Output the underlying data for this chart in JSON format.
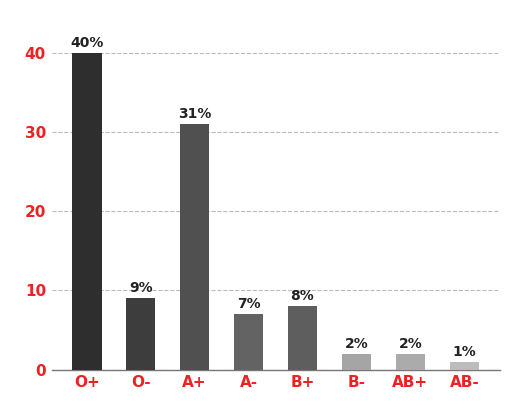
{
  "categories": [
    "O+",
    "O-",
    "A+",
    "A-",
    "B+",
    "B-",
    "AB+",
    "AB-"
  ],
  "values": [
    40,
    9,
    31,
    7,
    8,
    2,
    2,
    1
  ],
  "labels": [
    "40%",
    "9%",
    "31%",
    "7%",
    "8%",
    "2%",
    "2%",
    "1%"
  ],
  "bar_colors": [
    "#2e2e2e",
    "#3d3d3d",
    "#505050",
    "#636363",
    "#5e5e5e",
    "#a5a5a5",
    "#ababab",
    "#bcbcbc"
  ],
  "xlabel_color": "#ee2222",
  "ylabel_color": "#ee2222",
  "background_color": "#ffffff",
  "ylim": [
    0,
    44
  ],
  "yticks": [
    0,
    10,
    20,
    30,
    40
  ],
  "grid_color": "#bbbbbb",
  "label_fontsize": 10,
  "tick_fontsize": 11,
  "bar_width": 0.55
}
